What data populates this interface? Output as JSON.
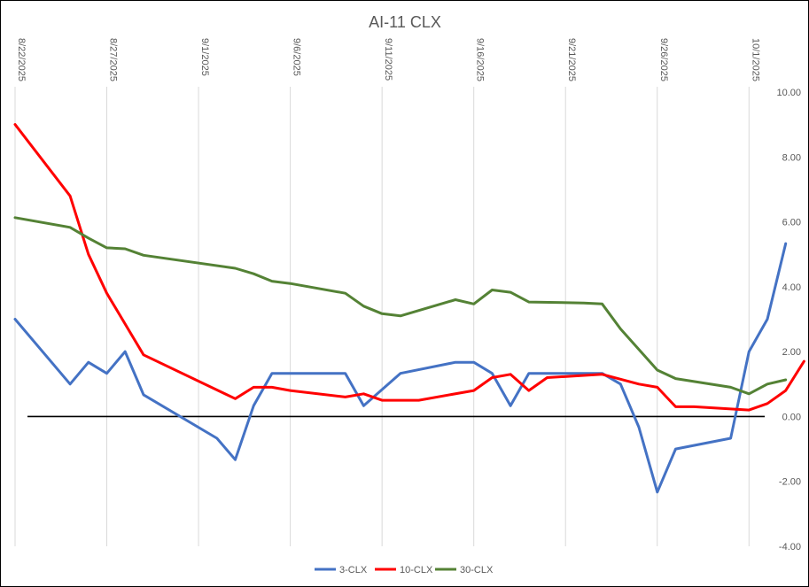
{
  "chart_data": {
    "type": "line",
    "title": "AI-11 CLX",
    "xlabel": "",
    "ylabel": "",
    "x_range": [
      "2025-08-22",
      "2025-10-02"
    ],
    "x_tick_labels": [
      "8/22/2025",
      "8/27/2025",
      "9/1/2025",
      "9/6/2025",
      "9/11/2025",
      "9/16/2025",
      "9/21/2025",
      "9/26/2025",
      "10/1/2025"
    ],
    "x_tick_dates": [
      "2025-08-22",
      "2025-08-27",
      "2025-09-01",
      "2025-09-06",
      "2025-09-11",
      "2025-09-16",
      "2025-09-21",
      "2025-09-26",
      "2025-10-01"
    ],
    "ylim": [
      -4,
      10
    ],
    "y_tick_labels": [
      "10.00",
      "8.00",
      "6.00",
      "4.00",
      "2.00",
      "0.00",
      "-2.00",
      "-4.00"
    ],
    "y_tick_values": [
      10,
      8,
      6,
      4,
      2,
      0,
      -2,
      -4
    ],
    "grid": "vertical",
    "legend_position": "bottom",
    "zero_line": true,
    "series": [
      {
        "name": "3-CLX",
        "color": "#4472C4",
        "points": [
          [
            "2025-08-22",
            3.0
          ],
          [
            "2025-08-25",
            1.0
          ],
          [
            "2025-08-26",
            1.67
          ],
          [
            "2025-08-27",
            1.33
          ],
          [
            "2025-08-28",
            2.0
          ],
          [
            "2025-08-29",
            0.67
          ],
          [
            "2025-09-02",
            -0.67
          ],
          [
            "2025-09-03",
            -1.33
          ],
          [
            "2025-09-04",
            0.33
          ],
          [
            "2025-09-05",
            1.33
          ],
          [
            "2025-09-09",
            1.33
          ],
          [
            "2025-09-10",
            0.33
          ],
          [
            "2025-09-12",
            1.33
          ],
          [
            "2025-09-15",
            1.67
          ],
          [
            "2025-09-16",
            1.67
          ],
          [
            "2025-09-17",
            1.33
          ],
          [
            "2025-09-18",
            0.33
          ],
          [
            "2025-09-19",
            1.33
          ],
          [
            "2025-09-23",
            1.33
          ],
          [
            "2025-09-24",
            1.0
          ],
          [
            "2025-09-25",
            -0.33
          ],
          [
            "2025-09-26",
            -2.33
          ],
          [
            "2025-09-27",
            -1.0
          ],
          [
            "2025-09-30",
            -0.67
          ],
          [
            "2025-10-01",
            2.0
          ],
          [
            "2025-10-02",
            3.0
          ],
          [
            "2025-10-03",
            5.33
          ]
        ]
      },
      {
        "name": "10-CLX",
        "color": "#FF0000",
        "points": [
          [
            "2025-08-22",
            9.0
          ],
          [
            "2025-08-25",
            6.8
          ],
          [
            "2025-08-26",
            5.0
          ],
          [
            "2025-08-27",
            3.8
          ],
          [
            "2025-08-29",
            1.9
          ],
          [
            "2025-09-03",
            0.55
          ],
          [
            "2025-09-04",
            0.9
          ],
          [
            "2025-09-05",
            0.9
          ],
          [
            "2025-09-06",
            0.8
          ],
          [
            "2025-09-09",
            0.6
          ],
          [
            "2025-09-10",
            0.7
          ],
          [
            "2025-09-11",
            0.5
          ],
          [
            "2025-09-13",
            0.5
          ],
          [
            "2025-09-16",
            0.8
          ],
          [
            "2025-09-17",
            1.2
          ],
          [
            "2025-09-18",
            1.3
          ],
          [
            "2025-09-19",
            0.8
          ],
          [
            "2025-09-20",
            1.2
          ],
          [
            "2025-09-23",
            1.3
          ],
          [
            "2025-09-25",
            1.0
          ],
          [
            "2025-09-26",
            0.9
          ],
          [
            "2025-09-27",
            0.3
          ],
          [
            "2025-09-28",
            0.3
          ],
          [
            "2025-10-01",
            0.2
          ],
          [
            "2025-10-02",
            0.4
          ],
          [
            "2025-10-03",
            0.8
          ],
          [
            "2025-10-04",
            1.7
          ]
        ]
      },
      {
        "name": "30-CLX",
        "color": "#548235",
        "points": [
          [
            "2025-08-22",
            6.13
          ],
          [
            "2025-08-25",
            5.83
          ],
          [
            "2025-08-26",
            5.5
          ],
          [
            "2025-08-27",
            5.2
          ],
          [
            "2025-08-28",
            5.17
          ],
          [
            "2025-08-29",
            4.97
          ],
          [
            "2025-09-03",
            4.57
          ],
          [
            "2025-09-04",
            4.4
          ],
          [
            "2025-09-05",
            4.17
          ],
          [
            "2025-09-06",
            4.1
          ],
          [
            "2025-09-09",
            3.8
          ],
          [
            "2025-09-10",
            3.4
          ],
          [
            "2025-09-11",
            3.17
          ],
          [
            "2025-09-12",
            3.1
          ],
          [
            "2025-09-15",
            3.6
          ],
          [
            "2025-09-16",
            3.47
          ],
          [
            "2025-09-17",
            3.9
          ],
          [
            "2025-09-18",
            3.83
          ],
          [
            "2025-09-19",
            3.53
          ],
          [
            "2025-09-22",
            3.5
          ],
          [
            "2025-09-23",
            3.47
          ],
          [
            "2025-09-24",
            2.7
          ],
          [
            "2025-09-26",
            1.43
          ],
          [
            "2025-09-27",
            1.17
          ],
          [
            "2025-09-30",
            0.9
          ],
          [
            "2025-10-01",
            0.7
          ],
          [
            "2025-10-02",
            1.0
          ],
          [
            "2025-10-03",
            1.13
          ]
        ]
      }
    ]
  }
}
